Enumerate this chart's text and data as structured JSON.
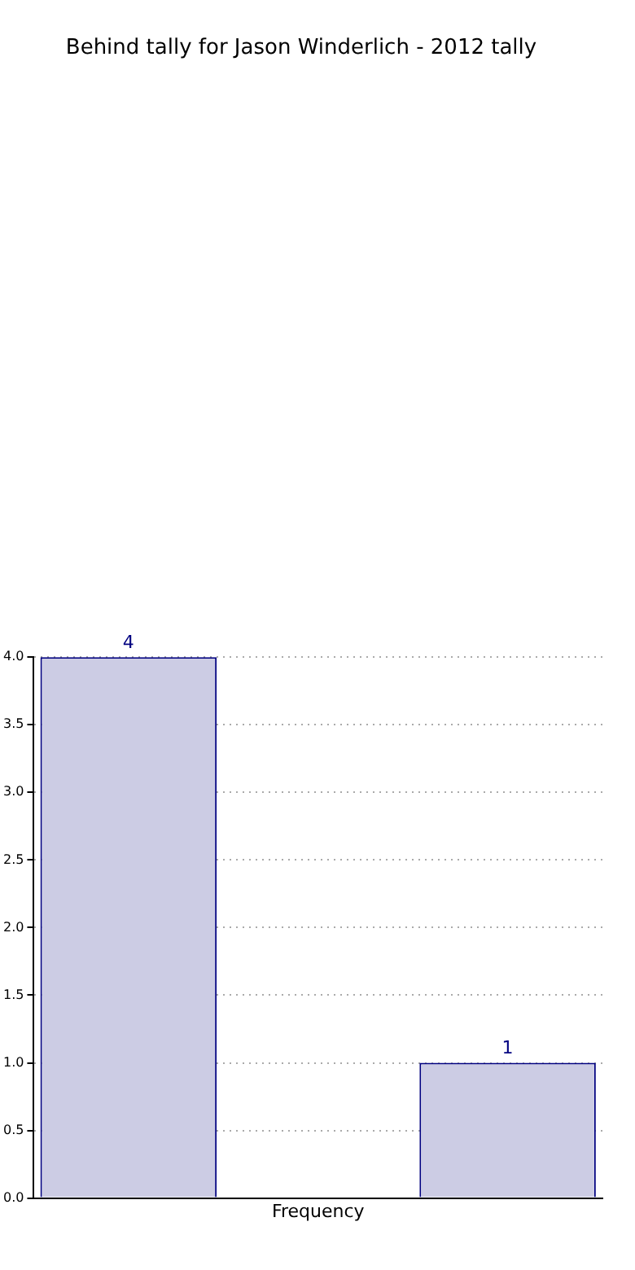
{
  "chart_data": {
    "type": "bar",
    "title": "Behind tally for Jason Winderlich - 2012 tally",
    "xlabel": "Frequency",
    "categories": [
      null,
      null,
      null
    ],
    "series": [
      {
        "color": "#cccce4",
        "values": [
          4,
          0,
          1
        ],
        "value_labels": [
          "4",
          null,
          "1"
        ]
      }
    ],
    "ylim": [
      0,
      4
    ],
    "yticks": [
      {
        "value": 0,
        "label": "0.0"
      },
      {
        "value": 0.5,
        "label": "0.5"
      },
      {
        "value": 1,
        "label": "1.0"
      },
      {
        "value": 1.5,
        "label": "1.5"
      },
      {
        "value": 2,
        "label": "2.0"
      },
      {
        "value": 2.5,
        "label": "2.5"
      },
      {
        "value": 3,
        "label": "3.0"
      },
      {
        "value": 3.5,
        "label": "3.5"
      },
      {
        "value": 4,
        "label": "4.0"
      }
    ],
    "grid": "y"
  }
}
